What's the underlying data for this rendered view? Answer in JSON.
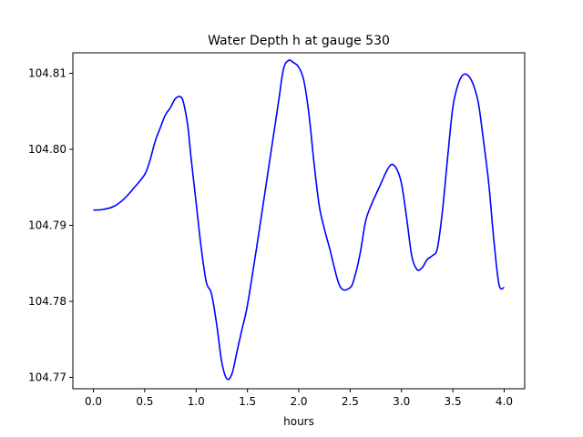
{
  "chart_data": {
    "type": "line",
    "title": "Water Depth h at gauge 530",
    "xlabel": "hours",
    "ylabel": "",
    "xlim": [
      -0.2,
      4.2
    ],
    "ylim": [
      104.7685,
      104.8127
    ],
    "xticks": [
      0.0,
      0.5,
      1.0,
      1.5,
      2.0,
      2.5,
      3.0,
      3.5,
      4.0
    ],
    "xtick_labels": [
      "0.0",
      "0.5",
      "1.0",
      "1.5",
      "2.0",
      "2.5",
      "3.0",
      "3.5",
      "4.0"
    ],
    "yticks": [
      104.77,
      104.78,
      104.79,
      104.8,
      104.81
    ],
    "ytick_labels": [
      "104.77",
      "104.78",
      "104.79",
      "104.80",
      "104.81"
    ],
    "grid": false,
    "series": [
      {
        "color": "#0000ff",
        "x": [
          0.0,
          0.1,
          0.2,
          0.3,
          0.4,
          0.5,
          0.55,
          0.6,
          0.65,
          0.7,
          0.75,
          0.8,
          0.85,
          0.88,
          0.92,
          0.95,
          1.0,
          1.05,
          1.1,
          1.15,
          1.2,
          1.25,
          1.3,
          1.35,
          1.4,
          1.45,
          1.5,
          1.6,
          1.7,
          1.8,
          1.85,
          1.9,
          1.95,
          2.0,
          2.05,
          2.1,
          2.15,
          2.2,
          2.25,
          2.3,
          2.4,
          2.5,
          2.55,
          2.6,
          2.65,
          2.7,
          2.8,
          2.85,
          2.9,
          2.95,
          3.0,
          3.05,
          3.1,
          3.15,
          3.2,
          3.25,
          3.3,
          3.35,
          3.4,
          3.45,
          3.5,
          3.55,
          3.6,
          3.65,
          3.7,
          3.75,
          3.8,
          3.85,
          3.9,
          3.95,
          4.0
        ],
        "y": [
          104.792,
          104.7921,
          104.7925,
          104.7935,
          104.795,
          104.7967,
          104.7985,
          104.801,
          104.8028,
          104.8045,
          104.8055,
          104.8067,
          104.8069,
          104.806,
          104.803,
          104.799,
          104.793,
          104.787,
          104.7825,
          104.781,
          104.777,
          104.772,
          104.7698,
          104.7705,
          104.7735,
          104.7765,
          104.7795,
          104.788,
          104.797,
          104.806,
          104.8105,
          104.8117,
          104.8114,
          104.8108,
          104.809,
          104.8045,
          104.798,
          104.7925,
          104.7895,
          104.787,
          104.782,
          104.7818,
          104.7835,
          104.7865,
          104.7905,
          104.7925,
          104.7955,
          104.797,
          104.798,
          104.7975,
          104.7955,
          104.791,
          104.786,
          104.7842,
          104.7844,
          104.7855,
          104.786,
          104.787,
          104.792,
          104.799,
          104.8055,
          104.8085,
          104.8098,
          104.8097,
          104.8085,
          104.806,
          104.801,
          104.7955,
          104.788,
          104.7822,
          104.7818
        ]
      }
    ]
  }
}
